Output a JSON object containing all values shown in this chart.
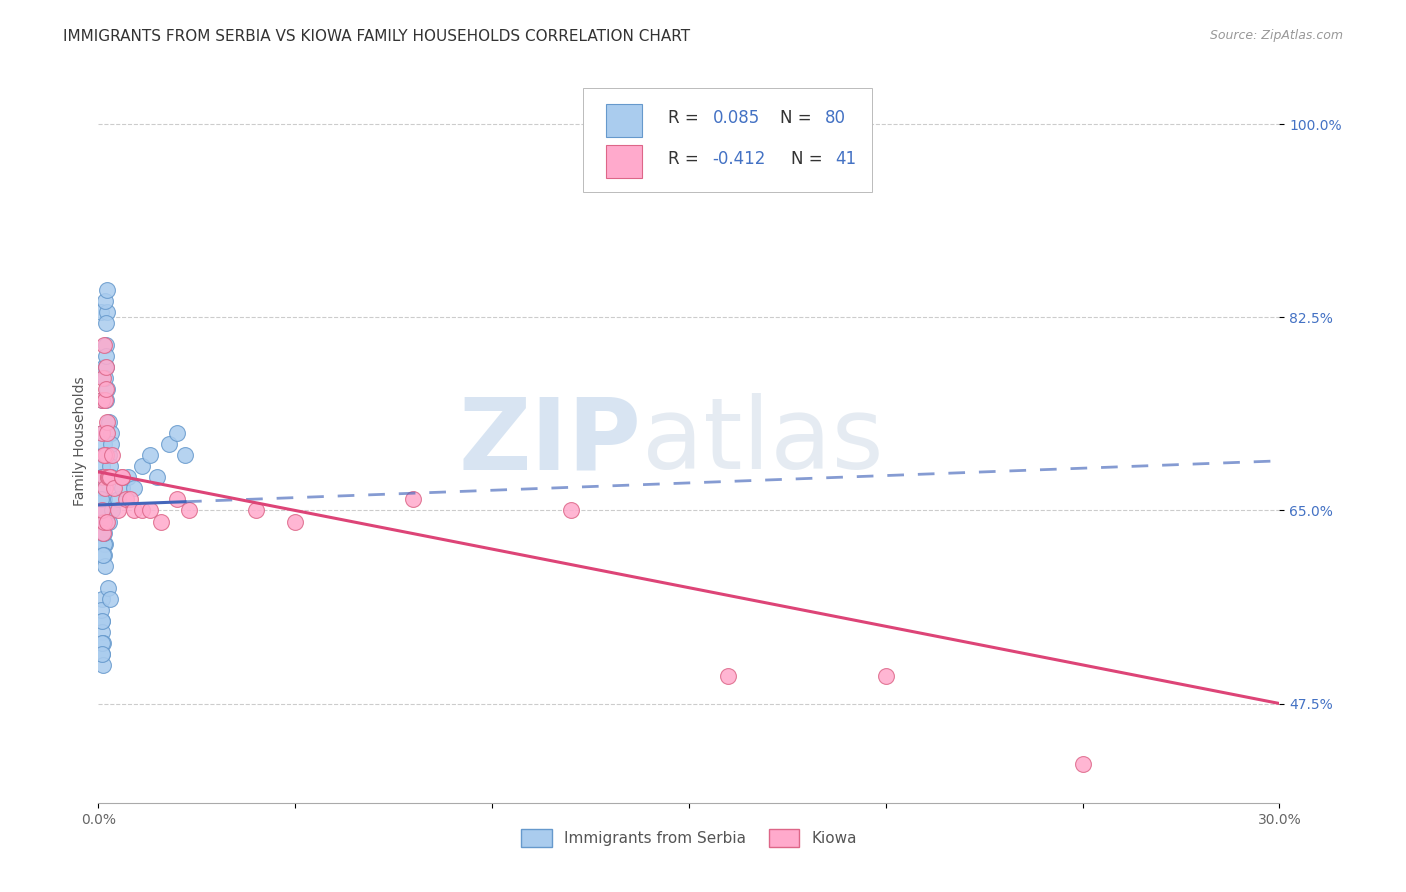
{
  "title": "IMMIGRANTS FROM SERBIA VS KIOWA FAMILY HOUSEHOLDS CORRELATION CHART",
  "source": "Source: ZipAtlas.com",
  "ylabel": "Family Households",
  "xlim": [
    0.0,
    0.3
  ],
  "ylim": [
    0.385,
    1.04
  ],
  "ytick_positions": [
    0.475,
    0.65,
    0.825,
    1.0
  ],
  "ytick_labels": [
    "47.5%",
    "65.0%",
    "82.5%",
    "100.0%"
  ],
  "xtick_positions": [
    0.0,
    0.05,
    0.1,
    0.15,
    0.2,
    0.25,
    0.3
  ],
  "xtick_labels": [
    "0.0%",
    "",
    "",
    "",
    "",
    "",
    "30.0%"
  ],
  "serbia_face": "#aaccee",
  "serbia_edge": "#6699cc",
  "kiowa_face": "#ffaacc",
  "kiowa_edge": "#dd6688",
  "serbia_line_color": "#4466bb",
  "kiowa_line_color": "#dd4477",
  "legend_label_serbia": "Immigrants from Serbia",
  "legend_label_kiowa": "Kiowa",
  "grid_color": "#cccccc",
  "bg_color": "#ffffff",
  "title_fontsize": 11,
  "ylabel_fontsize": 10,
  "tick_fontsize": 10,
  "source_fontsize": 9,
  "legend_fontsize": 12,
  "serbia_x": [
    0.0008,
    0.0012,
    0.0009,
    0.0015,
    0.0006,
    0.001,
    0.0013,
    0.0007,
    0.0011,
    0.0009,
    0.0014,
    0.0008,
    0.001,
    0.0012,
    0.0007,
    0.0016,
    0.0009,
    0.0011,
    0.0008,
    0.0013,
    0.001,
    0.0012,
    0.0009,
    0.0011,
    0.0008,
    0.001,
    0.0007,
    0.0009,
    0.0013,
    0.0015,
    0.0011,
    0.0014,
    0.0008,
    0.001,
    0.0016,
    0.0012,
    0.0009,
    0.0014,
    0.0011,
    0.0007,
    0.0009,
    0.0008,
    0.001,
    0.0012,
    0.0007,
    0.0009,
    0.0008,
    0.0011,
    0.0009,
    0.001,
    0.002,
    0.0018,
    0.0022,
    0.0019,
    0.0021,
    0.0017,
    0.0023,
    0.002,
    0.0018,
    0.0016,
    0.0025,
    0.003,
    0.0028,
    0.0032,
    0.0027,
    0.0033,
    0.0029,
    0.0031,
    0.0026,
    0.0035,
    0.005,
    0.006,
    0.0075,
    0.009,
    0.011,
    0.013,
    0.015,
    0.018,
    0.02,
    0.022
  ],
  "serbia_y": [
    0.65,
    0.7,
    0.72,
    0.68,
    0.66,
    0.69,
    0.71,
    0.67,
    0.63,
    0.64,
    0.66,
    0.75,
    0.68,
    0.63,
    0.83,
    0.62,
    0.65,
    0.64,
    0.63,
    0.78,
    0.67,
    0.68,
    0.65,
    0.64,
    0.66,
    0.63,
    0.65,
    0.64,
    0.62,
    0.61,
    0.63,
    0.66,
    0.67,
    0.68,
    0.6,
    0.61,
    0.64,
    0.63,
    0.65,
    0.66,
    0.55,
    0.57,
    0.54,
    0.53,
    0.56,
    0.52,
    0.55,
    0.51,
    0.53,
    0.52,
    0.75,
    0.78,
    0.76,
    0.8,
    0.83,
    0.84,
    0.85,
    0.82,
    0.79,
    0.77,
    0.58,
    0.57,
    0.73,
    0.72,
    0.7,
    0.71,
    0.69,
    0.68,
    0.64,
    0.65,
    0.66,
    0.67,
    0.68,
    0.67,
    0.69,
    0.7,
    0.68,
    0.71,
    0.72,
    0.7
  ],
  "kiowa_x": [
    0.0008,
    0.0012,
    0.0015,
    0.002,
    0.0009,
    0.0014,
    0.0018,
    0.0022,
    0.0016,
    0.0011,
    0.0025,
    0.0019,
    0.0013,
    0.0017,
    0.0021,
    0.0015,
    0.0024,
    0.001,
    0.0028,
    0.0023,
    0.003,
    0.0035,
    0.004,
    0.005,
    0.006,
    0.007,
    0.008,
    0.006,
    0.009,
    0.011,
    0.013,
    0.016,
    0.02,
    0.023,
    0.04,
    0.05,
    0.08,
    0.12,
    0.16,
    0.2,
    0.25
  ],
  "kiowa_y": [
    0.75,
    0.77,
    0.8,
    0.78,
    0.72,
    0.68,
    0.7,
    0.73,
    0.75,
    0.63,
    0.68,
    0.76,
    0.64,
    0.67,
    0.72,
    0.7,
    0.68,
    0.65,
    0.68,
    0.64,
    0.68,
    0.7,
    0.67,
    0.65,
    0.68,
    0.66,
    0.66,
    0.68,
    0.65,
    0.65,
    0.65,
    0.64,
    0.66,
    0.65,
    0.65,
    0.64,
    0.66,
    0.65,
    0.5,
    0.5,
    0.42
  ],
  "serbia_trend_x0": 0.0,
  "serbia_trend_x1": 0.022,
  "serbia_trend_xdash_end": 0.3,
  "kiowa_trend_x0": 0.0,
  "kiowa_trend_x1": 0.3
}
